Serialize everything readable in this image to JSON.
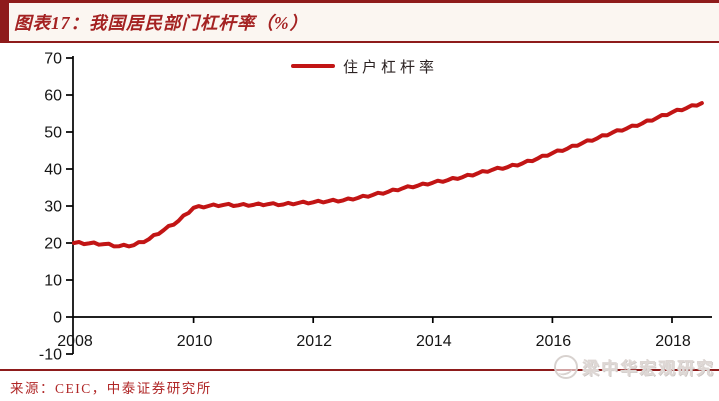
{
  "header": {
    "title": "图表17：我国居民部门杠杆率（%）"
  },
  "legend": {
    "label": "住户杠杆率"
  },
  "footer": {
    "source": "来源：CEIC，中泰证券研究所",
    "watermark": "梁中华宏观研究"
  },
  "colors": {
    "accent": "#8e1b1b",
    "line": "#c21515",
    "axis": "#000000",
    "tick_text": "#151515"
  },
  "chart_data": {
    "type": "line",
    "title": "我国居民部门杠杆率（%）",
    "xlabel": "",
    "ylabel": "",
    "grid": false,
    "legend_position": "top-center",
    "legend_entries": [
      "住户杠杆率"
    ],
    "x_ticks": [
      2008,
      2010,
      2012,
      2014,
      2016,
      2018
    ],
    "y_ticks": [
      70,
      60,
      50,
      40,
      30,
      20,
      10,
      0,
      -10
    ],
    "ylim": [
      -10,
      70
    ],
    "xlim": [
      2008,
      2018.6
    ],
    "series": [
      {
        "name": "住户杠杆率",
        "x_start": 2008.0,
        "x_step": 0.25,
        "values": [
          20.0,
          19.9,
          19.7,
          19.1,
          19.4,
          21.0,
          23.5,
          26.0,
          29.5,
          30.0,
          30.3,
          30.2,
          30.3,
          30.5,
          30.4,
          30.8,
          31.0,
          31.3,
          31.5,
          32.2,
          33.0,
          33.8,
          34.8,
          35.5,
          36.3,
          37.0,
          37.8,
          38.8,
          39.8,
          40.5,
          41.5,
          42.8,
          44.3,
          45.5,
          47.0,
          48.3,
          49.8,
          51.0,
          52.3,
          53.8,
          55.3,
          56.5,
          57.8
        ]
      }
    ]
  }
}
